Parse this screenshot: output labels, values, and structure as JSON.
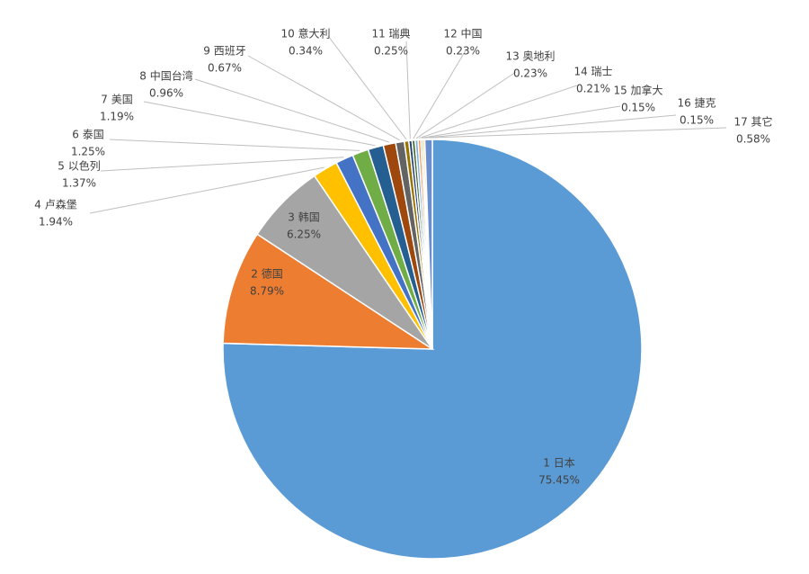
{
  "chart_data": {
    "type": "pie",
    "categories": [
      "1 日本",
      "2 德国",
      "3 韩国",
      "4 卢森堡",
      "5 以色列",
      "6 泰国",
      "7 美国",
      "8 中国台湾",
      "9 西班牙",
      "10 意大利",
      "11 瑞典",
      "12 中国",
      "13 奥地利",
      "14 瑞士",
      "15 加拿大",
      "16 捷克",
      "17 其它"
    ],
    "values": [
      75.45,
      8.79,
      6.25,
      1.94,
      1.37,
      1.25,
      1.19,
      0.96,
      0.67,
      0.34,
      0.25,
      0.23,
      0.23,
      0.21,
      0.15,
      0.15,
      0.58
    ],
    "value_labels": [
      "75.45%",
      "8.79%",
      "6.25%",
      "1.94%",
      "1.37%",
      "1.25%",
      "1.19%",
      "0.96%",
      "0.67%",
      "0.34%",
      "0.25%",
      "0.23%",
      "0.23%",
      "0.21%",
      "0.15%",
      "0.15%",
      "0.58%"
    ],
    "colors": [
      "#5b9bd5",
      "#ed7d31",
      "#a5a5a5",
      "#ffc000",
      "#4472c4",
      "#70ad47",
      "#255e91",
      "#9e480e",
      "#636363",
      "#997300",
      "#264478",
      "#43682b",
      "#7cafdd",
      "#f1975a",
      "#b7b7b7",
      "#ffcd33",
      "#698ed0"
    ]
  }
}
